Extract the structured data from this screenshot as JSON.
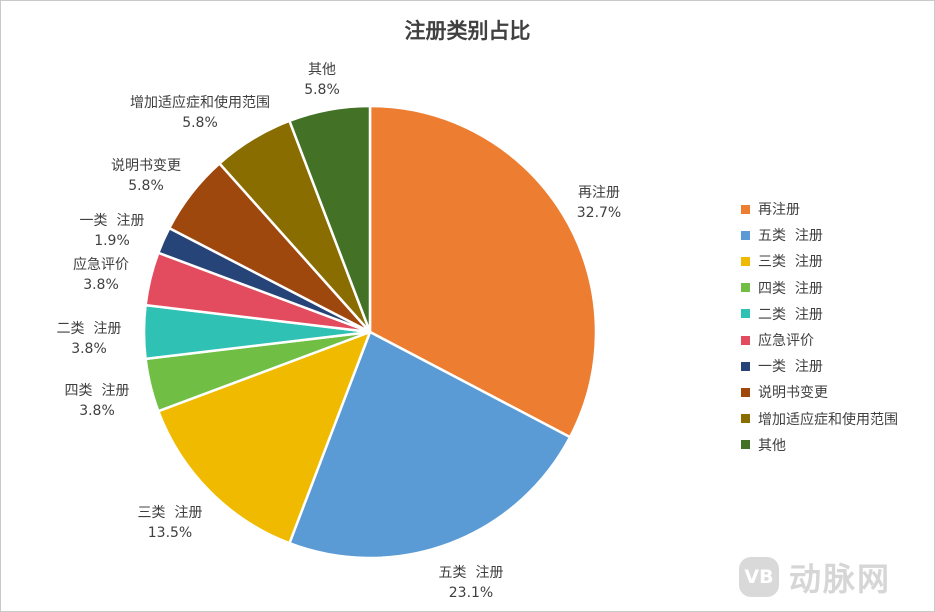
{
  "chart_data": {
    "type": "pie",
    "title": "注册类别占比",
    "legend_position": "right",
    "slices": [
      {
        "label": "再注册",
        "value": 32.7,
        "value_label": "32.7%",
        "color": "#ED7D31"
      },
      {
        "label": "五类  注册",
        "value": 23.1,
        "value_label": "23.1%",
        "color": "#5B9BD5"
      },
      {
        "label": "三类  注册",
        "value": 13.5,
        "value_label": "13.5%",
        "color": "#F0BA00"
      },
      {
        "label": "四类  注册",
        "value": 3.8,
        "value_label": "3.8%",
        "color": "#70BF44"
      },
      {
        "label": "二类  注册",
        "value": 3.8,
        "value_label": "3.8%",
        "color": "#2FC1B4"
      },
      {
        "label": "应急评价",
        "value": 3.8,
        "value_label": "3.8%",
        "color": "#E34B5E"
      },
      {
        "label": "一类  注册",
        "value": 1.9,
        "value_label": "1.9%",
        "color": "#264478"
      },
      {
        "label": "说明书变更",
        "value": 5.8,
        "value_label": "5.8%",
        "color": "#9E480E"
      },
      {
        "label": "增加适应症和使用范围",
        "value": 5.8,
        "value_label": "5.8%",
        "color": "#8A6D00"
      },
      {
        "label": "其他",
        "value": 5.8,
        "value_label": "5.8%",
        "color": "#437227"
      }
    ]
  },
  "watermark": {
    "logo_text": "VB",
    "text": "动脉网"
  }
}
